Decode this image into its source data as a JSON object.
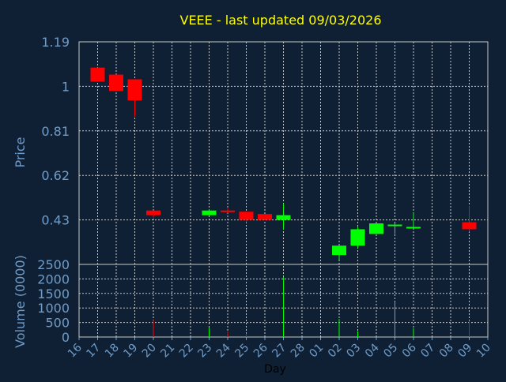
{
  "chart_data": [
    {
      "type": "candlestick",
      "title": "VEEE - last updated 09/03/2026",
      "ylabel": "Price",
      "ylim": [
        0.24,
        1.19
      ],
      "yticks": [
        "1.19",
        "1",
        "0.81",
        "0.62",
        "0.43"
      ],
      "grid": true,
      "colors": {
        "up": "#00ff00",
        "down": "#ff0000",
        "title": "#ffff00",
        "axis_text": "#6f9cc8",
        "grid": "#c8c8c8"
      },
      "x": [
        "16",
        "17",
        "18",
        "19",
        "20",
        "21",
        "22",
        "23",
        "24",
        "25",
        "26",
        "27",
        "28",
        "01",
        "02",
        "03",
        "04",
        "05",
        "06",
        "07",
        "08",
        "09",
        "10"
      ],
      "candles": [
        {
          "day": "17",
          "open": 1.08,
          "high": 1.08,
          "low": 1.02,
          "close": 1.02
        },
        {
          "day": "18",
          "open": 1.05,
          "high": 1.05,
          "low": 0.98,
          "close": 0.98
        },
        {
          "day": "19",
          "open": 1.03,
          "high": 1.03,
          "low": 0.87,
          "close": 0.94
        },
        {
          "day": "20",
          "open": 0.47,
          "high": 0.47,
          "low": 0.44,
          "close": 0.45
        },
        {
          "day": "23",
          "open": 0.45,
          "high": 0.475,
          "low": 0.45,
          "close": 0.47
        },
        {
          "day": "24",
          "open": 0.47,
          "high": 0.48,
          "low": 0.46,
          "close": 0.465
        },
        {
          "day": "25",
          "open": 0.465,
          "high": 0.465,
          "low": 0.42,
          "close": 0.43
        },
        {
          "day": "26",
          "open": 0.455,
          "high": 0.455,
          "low": 0.43,
          "close": 0.43
        },
        {
          "day": "27",
          "open": 0.43,
          "high": 0.5,
          "low": 0.39,
          "close": 0.45
        },
        {
          "day": "02",
          "open": 0.28,
          "high": 0.32,
          "low": 0.26,
          "close": 0.32
        },
        {
          "day": "03",
          "open": 0.32,
          "high": 0.4,
          "low": 0.31,
          "close": 0.39
        },
        {
          "day": "04",
          "open": 0.37,
          "high": 0.415,
          "low": 0.37,
          "close": 0.415
        },
        {
          "day": "05",
          "open": 0.405,
          "high": 0.415,
          "low": 0.37,
          "close": 0.41
        },
        {
          "day": "06",
          "open": 0.395,
          "high": 0.46,
          "low": 0.395,
          "close": 0.4
        },
        {
          "day": "09",
          "open": 0.42,
          "high": 0.49,
          "low": 0.38,
          "close": 0.39
        }
      ]
    },
    {
      "type": "bar",
      "ylabel": "Volume (0000)",
      "xlabel": "Day",
      "ylim": [
        0,
        2500
      ],
      "yticks": [
        "2500",
        "2000",
        "1500",
        "1000",
        "500",
        "0"
      ],
      "grid": true,
      "bars": [
        {
          "day": "20",
          "value": 580,
          "color": "#ff0000"
        },
        {
          "day": "23",
          "value": 330,
          "color": "#00ff00"
        },
        {
          "day": "24",
          "value": 180,
          "color": "#ff0000"
        },
        {
          "day": "25",
          "value": 120,
          "color": "#ff0000"
        },
        {
          "day": "27",
          "value": 2080,
          "color": "#00ff00"
        },
        {
          "day": "02",
          "value": 620,
          "color": "#00ff00"
        },
        {
          "day": "03",
          "value": 200,
          "color": "#00ff00"
        },
        {
          "day": "05",
          "value": 1220,
          "color": "#00ff00"
        },
        {
          "day": "06",
          "value": 300,
          "color": "#00ff00"
        },
        {
          "day": "09",
          "value": 560,
          "color": "#ff0000"
        }
      ]
    }
  ]
}
